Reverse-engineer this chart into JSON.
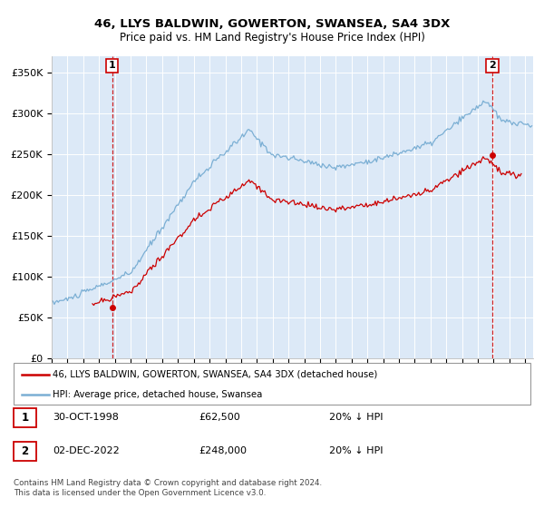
{
  "title": "46, LLYS BALDWIN, GOWERTON, SWANSEA, SA4 3DX",
  "subtitle": "Price paid vs. HM Land Registry's House Price Index (HPI)",
  "ylabel_ticks": [
    "£0",
    "£50K",
    "£100K",
    "£150K",
    "£200K",
    "£250K",
    "£300K",
    "£350K"
  ],
  "ytick_values": [
    0,
    50000,
    100000,
    150000,
    200000,
    250000,
    300000,
    350000
  ],
  "ylim": [
    0,
    370000
  ],
  "xlim_start": 1995.3,
  "xlim_end": 2025.5,
  "bg_color": "#dce9f7",
  "hpi_color": "#7bafd4",
  "price_color": "#cc0000",
  "sale1_x": 1998.833,
  "sale1_y": 62500,
  "sale2_x": 2022.917,
  "sale2_y": 248000,
  "legend_label1": "46, LLYS BALDWIN, GOWERTON, SWANSEA, SA4 3DX (detached house)",
  "legend_label2": "HPI: Average price, detached house, Swansea",
  "table_row1_num": "1",
  "table_row1_date": "30-OCT-1998",
  "table_row1_price": "£62,500",
  "table_row1_hpi": "20% ↓ HPI",
  "table_row2_num": "2",
  "table_row2_date": "02-DEC-2022",
  "table_row2_price": "£248,000",
  "table_row2_hpi": "20% ↓ HPI",
  "footer": "Contains HM Land Registry data © Crown copyright and database right 2024.\nThis data is licensed under the Open Government Licence v3.0."
}
